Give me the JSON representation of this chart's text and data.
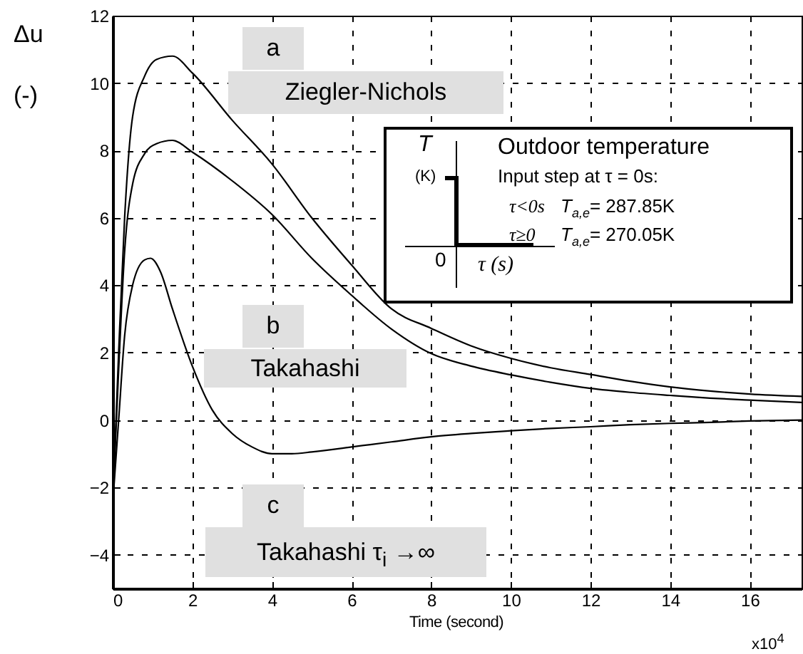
{
  "chart_data": {
    "type": "line",
    "xlabel": "Time (second)",
    "ylabel": "Δu\n(-)",
    "x": [
      0,
      0.15,
      0.3,
      0.5,
      0.8,
      1.1,
      1.5,
      2,
      3,
      4,
      5,
      6,
      7,
      8,
      9,
      10,
      11,
      12,
      13,
      14,
      15,
      16,
      17.3
    ],
    "series": [
      {
        "color": "#000000",
        "values": [
          -2.5,
          2,
          6,
          9,
          10.2,
          10.7,
          10.8,
          10.3,
          8.9,
          7.6,
          6.0,
          4.6,
          3.3,
          2.72,
          2.2,
          1.83,
          1.55,
          1.35,
          1.15,
          0.98,
          0.86,
          0.77,
          0.7
        ]
      },
      {
        "color": "#000000",
        "values": [
          -2.5,
          1.5,
          5,
          7,
          7.9,
          8.2,
          8.3,
          7.95,
          7.1,
          6.1,
          4.8,
          3.7,
          2.7,
          1.97,
          1.6,
          1.34,
          1.12,
          0.94,
          0.82,
          0.73,
          0.65,
          0.59,
          0.52
        ]
      },
      {
        "color": "#000000",
        "x": [
          0,
          0.15,
          0.3,
          0.5,
          0.8,
          0.95,
          1.2,
          1.5,
          2,
          2.5,
          3,
          3.5,
          4,
          4.5,
          5,
          6,
          7,
          8,
          9,
          10,
          11,
          12,
          13,
          14,
          15,
          16,
          17.3
        ],
        "values": [
          -2.5,
          0,
          2.5,
          4,
          4.75,
          4.8,
          4.4,
          3.3,
          1.6,
          0.3,
          -0.4,
          -0.8,
          -1.0,
          -1.0,
          -0.95,
          -0.8,
          -0.65,
          -0.5,
          -0.4,
          -0.32,
          -0.25,
          -0.2,
          -0.14,
          -0.1,
          -0.07,
          -0.03,
          0
        ]
      }
    ],
    "xlim": [
      0,
      17.3
    ],
    "xticks": [
      0,
      2,
      4,
      6,
      8,
      10,
      12,
      14,
      16
    ],
    "ylim": [
      -5,
      12
    ],
    "yticks": [
      -4,
      -2,
      0,
      2,
      4,
      6,
      8,
      10,
      12
    ],
    "grid": true,
    "annotations": [
      "a",
      "Ziegler-Nichols",
      "b",
      "Takahashi",
      "c",
      "Takahashi τ$_{i}$ →∞",
      "x10$^{4}$",
      "T",
      "(K)",
      "0",
      "τ (s)",
      "Outdoor temperature",
      "Input step at τ = 0s:",
      "τ<0s",
      "T$_{a,e}$= 287.85K",
      "τ≥0",
      "T$_{a,e}$= 270.05K"
    ]
  }
}
